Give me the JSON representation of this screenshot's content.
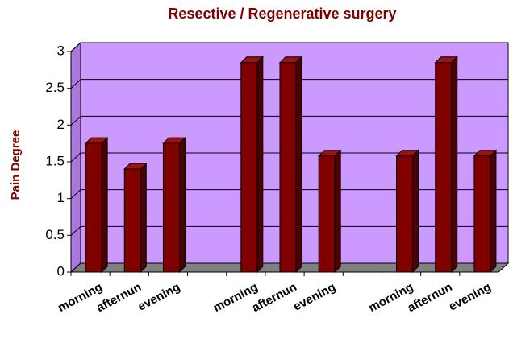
{
  "chart_data": {
    "type": "bar",
    "title": "Resective / Regenerative surgery",
    "y_label": "Pain Degree",
    "categories": [
      "morning",
      "afternun",
      "evening",
      null,
      "morning",
      "afternun",
      "evening",
      null,
      "morning",
      "afternun",
      "evening"
    ],
    "values": [
      1.75,
      1.4,
      1.75,
      null,
      2.85,
      2.85,
      1.58,
      null,
      1.58,
      2.85,
      1.58
    ],
    "color": "#800000",
    "wall_color": "#cc99ff",
    "floor_color": "#808080",
    "ylim": [
      0,
      3
    ],
    "yticks": [
      0,
      0.5,
      1,
      1.5,
      2,
      2.5,
      3
    ],
    "grid": true
  }
}
